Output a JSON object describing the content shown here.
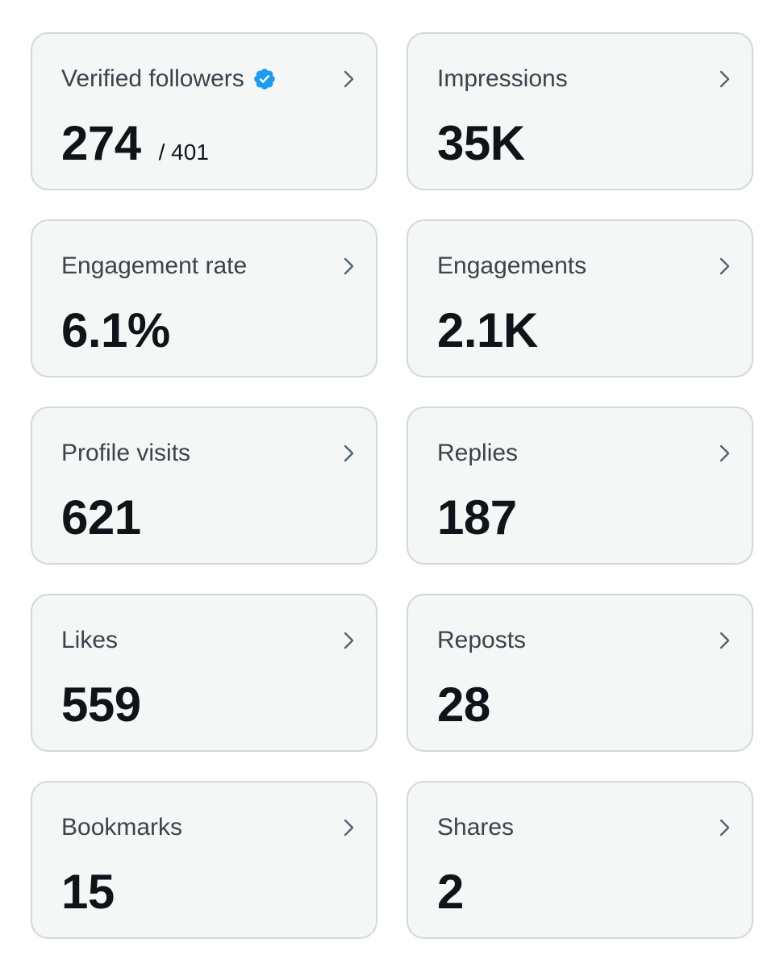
{
  "metrics": [
    {
      "label": "Verified followers",
      "value": "274",
      "total": "/ 401",
      "verified": true
    },
    {
      "label": "Impressions",
      "value": "35K"
    },
    {
      "label": "Engagement rate",
      "value": "6.1%"
    },
    {
      "label": "Engagements",
      "value": "2.1K"
    },
    {
      "label": "Profile visits",
      "value": "621"
    },
    {
      "label": "Replies",
      "value": "187"
    },
    {
      "label": "Likes",
      "value": "559"
    },
    {
      "label": "Reposts",
      "value": "28"
    },
    {
      "label": "Bookmarks",
      "value": "15"
    },
    {
      "label": "Shares",
      "value": "2"
    }
  ],
  "icons": {
    "chevron": "chevron-right-icon",
    "verified": "verified-badge-icon"
  },
  "colors": {
    "verified_badge": "#1d9bf0",
    "card_background": "#f5f6f6",
    "card_border": "#cfd9de",
    "label_text": "#3a444c",
    "value_text": "#0f1419"
  }
}
